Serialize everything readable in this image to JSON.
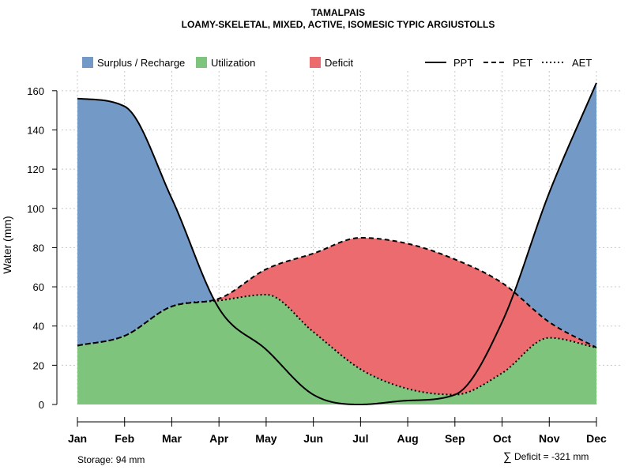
{
  "title": "TAMALPAIS",
  "subtitle": "LOAMY-SKELETAL, MIXED, ACTIVE, ISOMESIC TYPIC ARGIUSTOLLS",
  "colors": {
    "surplus": "#7399c6",
    "utilization": "#7fc47c",
    "deficit": "#ec6b6e",
    "line": "#000000"
  },
  "legend": {
    "surplus": "Surplus / Recharge",
    "utilization": "Utilization",
    "deficit": "Deficit",
    "ppt": "PPT",
    "pet": "PET",
    "aet": "AET"
  },
  "footer": {
    "storage": "Storage: 94 mm",
    "deficit_symbol": "∑",
    "deficit_text": "Deficit = -321 mm"
  },
  "chart_data": {
    "type": "area",
    "title": "TAMALPAIS",
    "subtitle": "LOAMY-SKELETAL, MIXED, ACTIVE, ISOMESIC TYPIC ARGIUSTOLLS",
    "xlabel": "",
    "ylabel": "Water (mm)",
    "categories": [
      "Jan",
      "Feb",
      "Mar",
      "Apr",
      "May",
      "Jun",
      "Jul",
      "Aug",
      "Sep",
      "Oct",
      "Nov",
      "Dec"
    ],
    "ylim": [
      0,
      170
    ],
    "yticks": [
      0,
      20,
      40,
      60,
      80,
      100,
      120,
      140,
      160
    ],
    "grid": true,
    "legend_position": "top",
    "series": [
      {
        "name": "PPT",
        "style": "solid",
        "values": [
          156,
          152,
          105,
          49,
          28,
          5,
          0,
          2,
          5,
          42,
          108,
          164
        ]
      },
      {
        "name": "PET",
        "style": "dashed",
        "values": [
          30,
          35,
          50,
          54,
          69,
          77,
          85,
          82,
          74,
          62,
          42,
          29
        ]
      },
      {
        "name": "AET",
        "style": "dotted",
        "values": [
          30,
          35,
          50,
          53,
          56,
          37,
          18,
          8,
          5,
          16,
          34,
          29
        ]
      }
    ]
  }
}
